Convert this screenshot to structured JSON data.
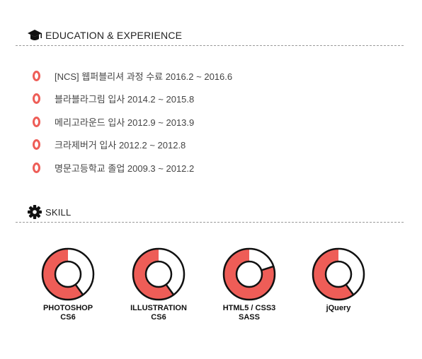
{
  "education": {
    "title": "EDUCATION & EXPERIENCE",
    "icon": "graduation-cap-icon",
    "items": [
      "[NCS] 웹퍼블리셔 과정 수료 2016.2 ~ 2016.6",
      "블라블라그림 입사 2014.2 ~ 2015.8",
      "메리고라운드 입사 2012.9 ~ 2013.9",
      "크라제버거 입사 2012.2 ~ 2012.8",
      "명문고등학교 졸업 2009.3 ~ 2012.2"
    ]
  },
  "skill": {
    "title": "SKILL",
    "icon": "gear-icon",
    "accent": "#ee5d57",
    "items": [
      {
        "line1": "PHOTOSHOP",
        "line2": "CS6",
        "level": 0.6
      },
      {
        "line1": "ILLUSTRATION",
        "line2": "CS6",
        "level": 0.6
      },
      {
        "line1": "HTML5 / CSS3",
        "line2": "SASS",
        "level": 0.8
      },
      {
        "line1": "jQuery",
        "line2": "",
        "level": 0.6
      }
    ]
  }
}
